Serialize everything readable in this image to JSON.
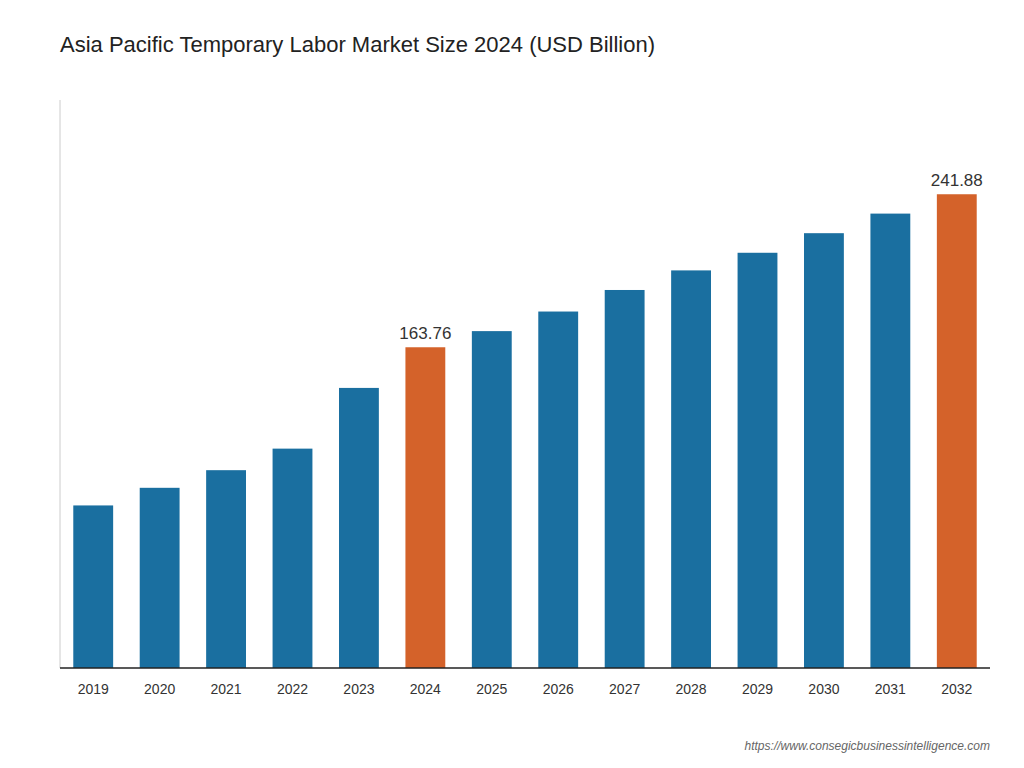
{
  "chart_data": {
    "type": "bar",
    "title": "Asia Pacific Temporary Labor Market Size 2024 (USD Billion)",
    "categories": [
      "2019",
      "2020",
      "2021",
      "2022",
      "2023",
      "2024",
      "2025",
      "2026",
      "2027",
      "2028",
      "2029",
      "2030",
      "2031",
      "2032"
    ],
    "values": [
      83,
      92,
      101,
      112,
      143,
      163.76,
      172,
      182,
      193,
      203,
      212,
      222,
      232,
      241.88
    ],
    "value_labels": [
      null,
      null,
      null,
      null,
      null,
      "163.76",
      null,
      null,
      null,
      null,
      null,
      null,
      null,
      "241.88"
    ],
    "colors": [
      "#1a6fa0",
      "#1a6fa0",
      "#1a6fa0",
      "#1a6fa0",
      "#1a6fa0",
      "#d4622a",
      "#1a6fa0",
      "#1a6fa0",
      "#1a6fa0",
      "#1a6fa0",
      "#1a6fa0",
      "#1a6fa0",
      "#1a6fa0",
      "#d4622a"
    ],
    "ylim": [
      0,
      290
    ],
    "grid": false,
    "tick_labels": "x",
    "annotations": [
      "https://www.consegicbusinessintelligence.com"
    ]
  }
}
